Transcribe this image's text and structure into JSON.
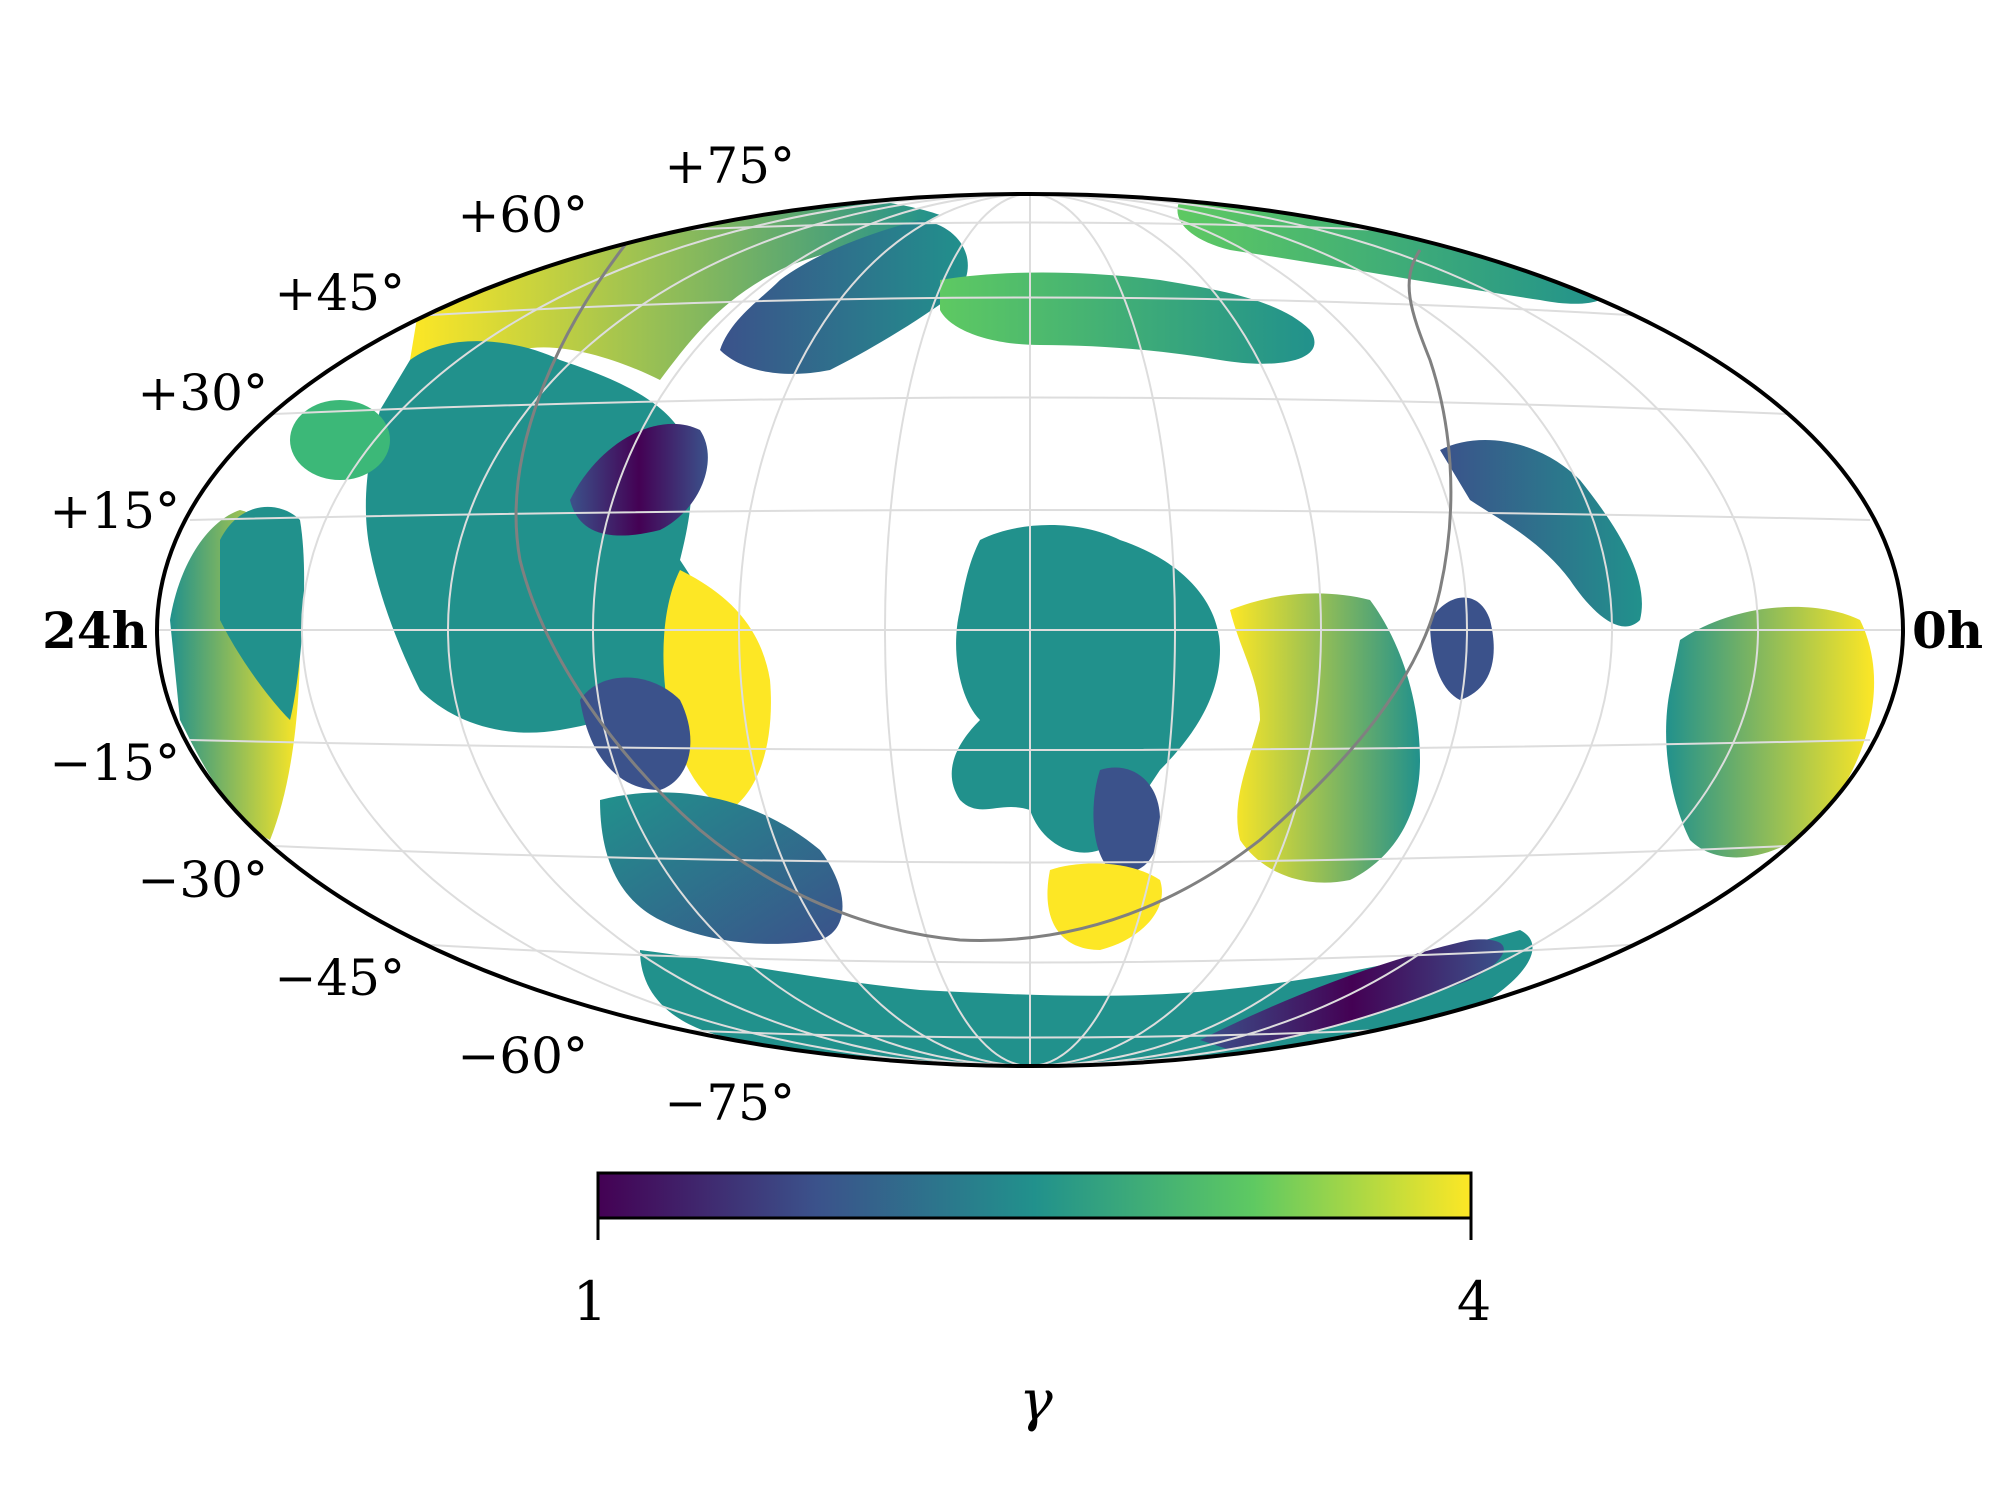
{
  "map": {
    "projection": "mollweide",
    "ra_left_label": "24h",
    "ra_right_label": "0h",
    "lat_labels_north": [
      "+15°",
      "+30°",
      "+45°",
      "+60°",
      "+75°"
    ],
    "lat_labels_south": [
      "−15°",
      "−30°",
      "−45°",
      "−60°",
      "−75°"
    ],
    "grid": true,
    "galactic_plane_curve": true
  },
  "colorbar": {
    "colormap": "viridis",
    "min_label": "1",
    "max_label": "4",
    "title": "γ",
    "range": [
      1,
      4
    ]
  },
  "colors": {
    "outline": "#000000",
    "grid": "#dddddd",
    "galactic_plane": "#808080",
    "viridis": [
      "#440154",
      "#3b528b",
      "#21918c",
      "#5ec962",
      "#fde725"
    ]
  }
}
